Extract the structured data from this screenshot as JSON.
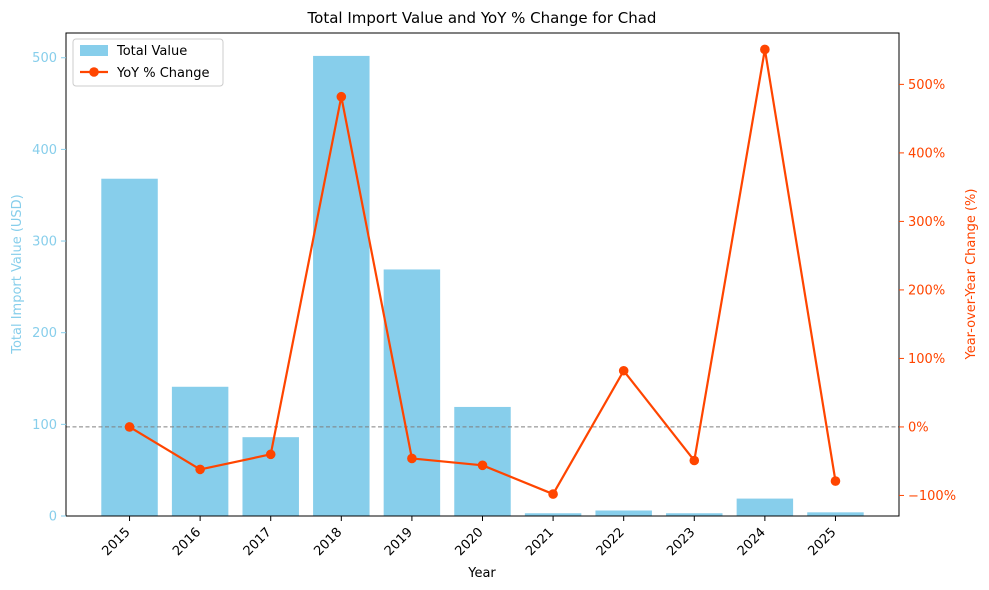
{
  "chart_data": {
    "type": "bar",
    "title": "Total Import Value and YoY % Change for Chad",
    "xlabel": "Year",
    "ylabel": "Total Import Value (USD)",
    "y2label": "Year-over-Year Change (%)",
    "categories": [
      "2015",
      "2016",
      "2017",
      "2018",
      "2019",
      "2020",
      "2021",
      "2022",
      "2023",
      "2024",
      "2025"
    ],
    "ylim": [
      0,
      527
    ],
    "y2lim": [
      -130,
      575
    ],
    "yticks": [
      0,
      100,
      200,
      300,
      400,
      500
    ],
    "y2ticks": [
      -100,
      0,
      100,
      200,
      300,
      400,
      500
    ],
    "y2tick_labels": [
      "−100%",
      "0%",
      "100%",
      "200%",
      "300%",
      "400%",
      "500%"
    ],
    "grid": false,
    "legend_position": "top-left",
    "reference_line_y2": 0,
    "series": [
      {
        "name": "Total Value",
        "type": "bar",
        "axis": "left",
        "color": "#87CEEB",
        "values": [
          368,
          141,
          86,
          502,
          269,
          119,
          3,
          6,
          3,
          19,
          4
        ]
      },
      {
        "name": "YoY % Change",
        "type": "line",
        "axis": "right",
        "color": "#FF4500",
        "values": [
          0,
          -62,
          -40,
          482,
          -46,
          -56,
          -98,
          82,
          -49,
          551,
          -79
        ]
      }
    ]
  }
}
